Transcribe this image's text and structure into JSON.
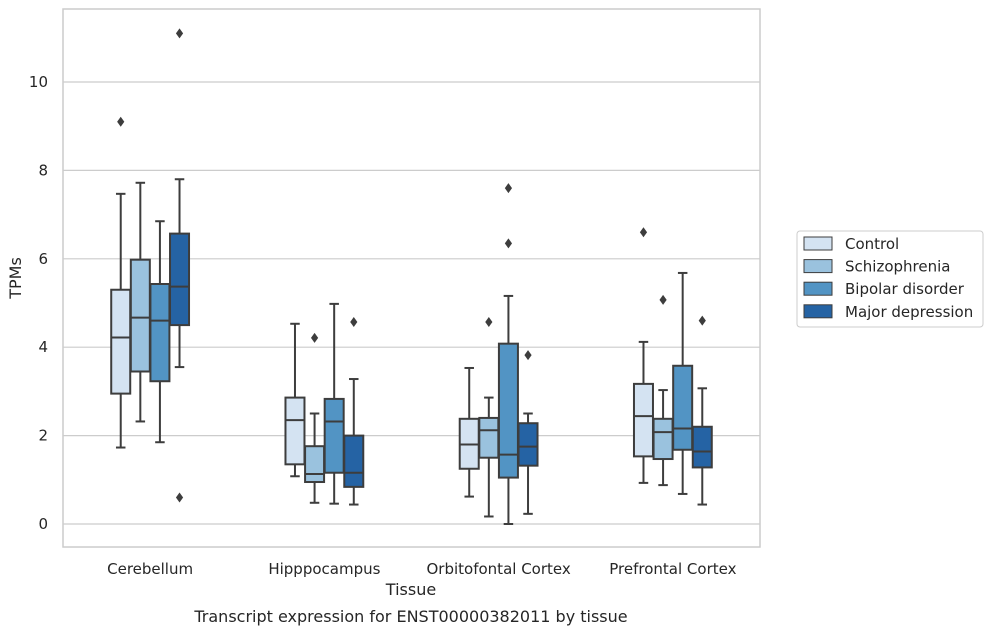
{
  "chart_data": {
    "type": "box",
    "title": "",
    "caption": "Transcript expression for ENST00000382011 by tissue",
    "xlabel": "Tissue",
    "ylabel": "TPMs",
    "ylim": [
      -0.5,
      11.6
    ],
    "yticks": [
      0,
      2,
      4,
      6,
      8,
      10
    ],
    "grid": true,
    "legend_position": "right",
    "categories": [
      "Cerebellum",
      "Hipppocampus",
      "Orbitofontal Cortex",
      "Prefrontal Cortex"
    ],
    "series": [
      {
        "name": "Control",
        "color": "#d4e3f2",
        "boxes": [
          {
            "whislo": 1.73,
            "q1": 2.95,
            "med": 4.22,
            "q3": 5.3,
            "whishi": 7.47,
            "fliers": [
              9.1
            ]
          },
          {
            "whislo": 1.08,
            "q1": 1.35,
            "med": 2.35,
            "q3": 2.86,
            "whishi": 4.53,
            "fliers": []
          },
          {
            "whislo": 0.62,
            "q1": 1.25,
            "med": 1.8,
            "q3": 2.38,
            "whishi": 3.53,
            "fliers": []
          },
          {
            "whislo": 0.93,
            "q1": 1.53,
            "med": 2.44,
            "q3": 3.17,
            "whishi": 4.12,
            "fliers": [
              6.6
            ]
          }
        ]
      },
      {
        "name": "Schizophrenia",
        "color": "#9ac2de",
        "boxes": [
          {
            "whislo": 2.32,
            "q1": 3.45,
            "med": 4.67,
            "q3": 5.98,
            "whishi": 7.72,
            "fliers": []
          },
          {
            "whislo": 0.48,
            "q1": 0.95,
            "med": 1.13,
            "q3": 1.76,
            "whishi": 2.5,
            "fliers": [
              4.21
            ]
          },
          {
            "whislo": 0.17,
            "q1": 1.5,
            "med": 2.12,
            "q3": 2.4,
            "whishi": 2.86,
            "fliers": [
              4.57
            ]
          },
          {
            "whislo": 0.88,
            "q1": 1.47,
            "med": 2.08,
            "q3": 2.38,
            "whishi": 3.03,
            "fliers": [
              5.07
            ]
          }
        ]
      },
      {
        "name": "Bipolar disorder",
        "color": "#5294c4",
        "boxes": [
          {
            "whislo": 1.85,
            "q1": 3.23,
            "med": 4.6,
            "q3": 5.43,
            "whishi": 6.85,
            "fliers": []
          },
          {
            "whislo": 0.46,
            "q1": 1.16,
            "med": 2.32,
            "q3": 2.83,
            "whishi": 4.98,
            "fliers": []
          },
          {
            "whislo": 0.0,
            "q1": 1.05,
            "med": 1.57,
            "q3": 4.08,
            "whishi": 5.16,
            "fliers": [
              7.6,
              6.35
            ]
          },
          {
            "whislo": 0.68,
            "q1": 1.68,
            "med": 2.16,
            "q3": 3.58,
            "whishi": 5.68,
            "fliers": []
          }
        ]
      },
      {
        "name": "Major depression",
        "color": "#2563a4",
        "boxes": [
          {
            "whislo": 3.55,
            "q1": 4.5,
            "med": 5.37,
            "q3": 6.57,
            "whishi": 7.8,
            "fliers": [
              11.1,
              0.6
            ]
          },
          {
            "whislo": 0.44,
            "q1": 0.84,
            "med": 1.16,
            "q3": 2.0,
            "whishi": 3.28,
            "fliers": [
              4.57
            ]
          },
          {
            "whislo": 0.23,
            "q1": 1.32,
            "med": 1.75,
            "q3": 2.28,
            "whishi": 2.5,
            "fliers": [
              3.82
            ]
          },
          {
            "whislo": 0.44,
            "q1": 1.28,
            "med": 1.64,
            "q3": 2.2,
            "whishi": 3.07,
            "fliers": [
              4.6
            ]
          }
        ]
      }
    ]
  }
}
